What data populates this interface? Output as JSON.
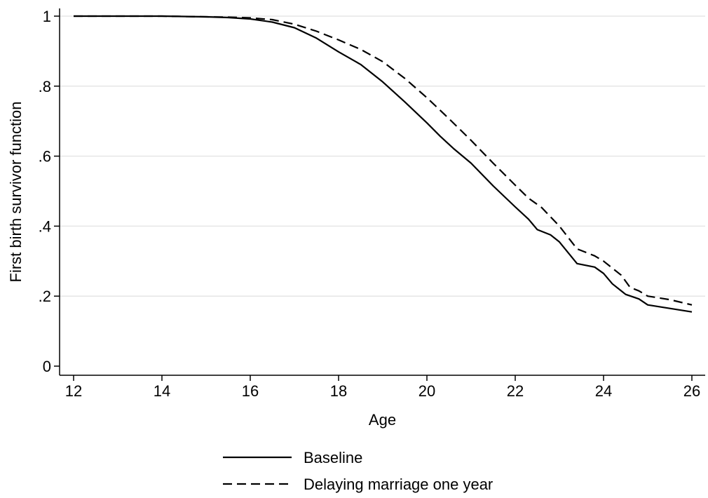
{
  "chart_data": {
    "type": "line",
    "xlabel": "Age",
    "ylabel": "First birth survivor function",
    "xlim": [
      12,
      26
    ],
    "ylim": [
      0,
      1
    ],
    "x_ticks": [
      12,
      14,
      16,
      18,
      20,
      22,
      24,
      26
    ],
    "x_tick_labels": [
      "12",
      "14",
      "16",
      "18",
      "20",
      "22",
      "24",
      "26"
    ],
    "y_ticks": [
      0,
      0.2,
      0.4,
      0.6,
      0.8,
      1
    ],
    "y_tick_labels": [
      "0",
      ".2",
      ".4",
      ".6",
      ".8",
      "1"
    ],
    "grid": "horizontal",
    "legend_position": "bottom",
    "series": [
      {
        "name": "Baseline",
        "style": "solid",
        "color": "#000000",
        "points": [
          [
            12,
            1.0
          ],
          [
            14,
            1.0
          ],
          [
            15,
            0.998
          ],
          [
            15.5,
            0.996
          ],
          [
            16,
            0.992
          ],
          [
            16.5,
            0.983
          ],
          [
            17,
            0.967
          ],
          [
            17.5,
            0.937
          ],
          [
            18,
            0.898
          ],
          [
            18.5,
            0.862
          ],
          [
            19,
            0.812
          ],
          [
            19.5,
            0.755
          ],
          [
            20,
            0.695
          ],
          [
            20.3,
            0.657
          ],
          [
            20.6,
            0.622
          ],
          [
            21,
            0.58
          ],
          [
            21.5,
            0.515
          ],
          [
            22,
            0.455
          ],
          [
            22.3,
            0.42
          ],
          [
            22.5,
            0.39
          ],
          [
            22.8,
            0.375
          ],
          [
            23,
            0.355
          ],
          [
            23.4,
            0.293
          ],
          [
            23.8,
            0.283
          ],
          [
            24,
            0.265
          ],
          [
            24.2,
            0.235
          ],
          [
            24.5,
            0.205
          ],
          [
            24.8,
            0.192
          ],
          [
            25,
            0.175
          ],
          [
            25.5,
            0.165
          ],
          [
            26,
            0.155
          ]
        ]
      },
      {
        "name": "Delaying marriage one year",
        "style": "dashed",
        "color": "#000000",
        "points": [
          [
            12,
            1.0
          ],
          [
            14,
            1.0
          ],
          [
            15,
            0.998
          ],
          [
            15.5,
            0.997
          ],
          [
            16,
            0.995
          ],
          [
            16.5,
            0.99
          ],
          [
            17,
            0.977
          ],
          [
            17.5,
            0.957
          ],
          [
            18,
            0.932
          ],
          [
            18.5,
            0.905
          ],
          [
            19,
            0.87
          ],
          [
            19.5,
            0.822
          ],
          [
            20,
            0.767
          ],
          [
            20.5,
            0.707
          ],
          [
            21,
            0.645
          ],
          [
            21.5,
            0.58
          ],
          [
            22,
            0.517
          ],
          [
            22.3,
            0.48
          ],
          [
            22.6,
            0.453
          ],
          [
            23,
            0.4
          ],
          [
            23.4,
            0.335
          ],
          [
            23.8,
            0.315
          ],
          [
            24,
            0.3
          ],
          [
            24.4,
            0.26
          ],
          [
            24.6,
            0.225
          ],
          [
            24.8,
            0.215
          ],
          [
            25,
            0.2
          ],
          [
            25.5,
            0.19
          ],
          [
            26,
            0.175
          ]
        ]
      }
    ]
  }
}
